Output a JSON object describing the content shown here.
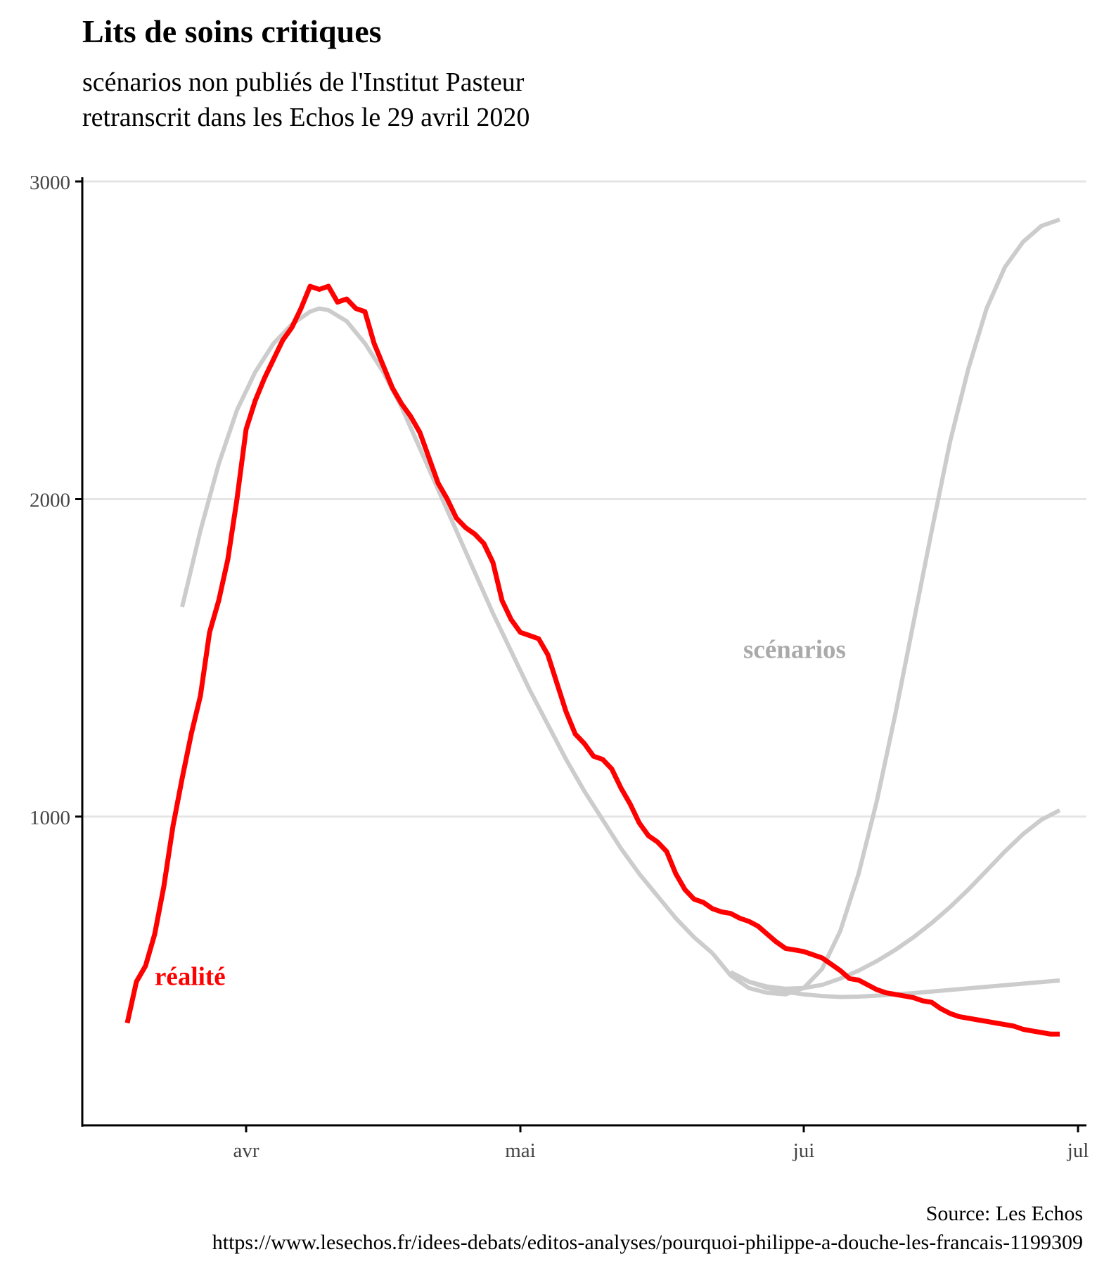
{
  "header": {
    "title": "Lits de soins critiques",
    "subtitle_lines": [
      "scénarios non publiés de l'Institut Pasteur",
      "retranscrit dans les Echos le 29 avril 2020"
    ]
  },
  "caption": {
    "source": "Source: Les Echos",
    "url": "https://www.lesechos.fr/idees-debats/editos-analyses/pourquoi-philippe-a-douche-les-francais-1199309"
  },
  "colors": {
    "reality": "#ff0000",
    "scenario": "#cccccc",
    "scenario_label": "#aaaaaa",
    "grid": "#e5e5e5",
    "axis": "#000000",
    "tick_text": "#444444"
  },
  "chart_data": {
    "type": "line",
    "title": "Lits de soins critiques",
    "xlabel": "",
    "ylabel": "",
    "x_unit": "date (2020)",
    "xlim": [
      "2020-03-14",
      "2020-07-01"
    ],
    "ylim": [
      0,
      3000
    ],
    "x_ticks": [
      {
        "date": "2020-04-01",
        "label": "avr"
      },
      {
        "date": "2020-05-01",
        "label": "mai"
      },
      {
        "date": "2020-06-01",
        "label": "jui"
      },
      {
        "date": "2020-07-01",
        "label": "jul"
      }
    ],
    "y_ticks": [
      1000,
      2000,
      3000
    ],
    "grid": "horizontal",
    "legend": "none",
    "annotations": [
      {
        "text": "réalité",
        "series": "réalité",
        "date": "2020-03-22",
        "y": 470
      },
      {
        "text": "scénarios",
        "series": "scénarios",
        "date": "2020-05-31",
        "y": 1500
      }
    ],
    "series": [
      {
        "name": "réalité",
        "color": "#ff0000",
        "points": [
          [
            "2020-03-19",
            350
          ],
          [
            "2020-03-20",
            480
          ],
          [
            "2020-03-21",
            530
          ],
          [
            "2020-03-22",
            630
          ],
          [
            "2020-03-23",
            780
          ],
          [
            "2020-03-24",
            970
          ],
          [
            "2020-03-25",
            1120
          ],
          [
            "2020-03-26",
            1260
          ],
          [
            "2020-03-27",
            1380
          ],
          [
            "2020-03-28",
            1580
          ],
          [
            "2020-03-29",
            1680
          ],
          [
            "2020-03-30",
            1810
          ],
          [
            "2020-03-31",
            2000
          ],
          [
            "2020-04-01",
            2220
          ],
          [
            "2020-04-02",
            2310
          ],
          [
            "2020-04-03",
            2380
          ],
          [
            "2020-04-04",
            2440
          ],
          [
            "2020-04-05",
            2500
          ],
          [
            "2020-04-06",
            2540
          ],
          [
            "2020-04-07",
            2600
          ],
          [
            "2020-04-08",
            2670
          ],
          [
            "2020-04-09",
            2660
          ],
          [
            "2020-04-10",
            2670
          ],
          [
            "2020-04-11",
            2620
          ],
          [
            "2020-04-12",
            2630
          ],
          [
            "2020-04-13",
            2600
          ],
          [
            "2020-04-14",
            2590
          ],
          [
            "2020-04-15",
            2490
          ],
          [
            "2020-04-16",
            2420
          ],
          [
            "2020-04-17",
            2350
          ],
          [
            "2020-04-18",
            2300
          ],
          [
            "2020-04-19",
            2260
          ],
          [
            "2020-04-20",
            2210
          ],
          [
            "2020-04-21",
            2130
          ],
          [
            "2020-04-22",
            2050
          ],
          [
            "2020-04-23",
            2000
          ],
          [
            "2020-04-24",
            1940
          ],
          [
            "2020-04-25",
            1910
          ],
          [
            "2020-04-26",
            1890
          ],
          [
            "2020-04-27",
            1860
          ],
          [
            "2020-04-28",
            1800
          ],
          [
            "2020-04-29",
            1680
          ],
          [
            "2020-04-30",
            1620
          ],
          [
            "2020-05-01",
            1580
          ],
          [
            "2020-05-02",
            1570
          ],
          [
            "2020-05-03",
            1560
          ],
          [
            "2020-05-04",
            1510
          ],
          [
            "2020-05-05",
            1420
          ],
          [
            "2020-05-06",
            1330
          ],
          [
            "2020-05-07",
            1260
          ],
          [
            "2020-05-08",
            1230
          ],
          [
            "2020-05-09",
            1190
          ],
          [
            "2020-05-10",
            1180
          ],
          [
            "2020-05-11",
            1150
          ],
          [
            "2020-05-12",
            1090
          ],
          [
            "2020-05-13",
            1040
          ],
          [
            "2020-05-14",
            980
          ],
          [
            "2020-05-15",
            940
          ],
          [
            "2020-05-16",
            920
          ],
          [
            "2020-05-17",
            890
          ],
          [
            "2020-05-18",
            820
          ],
          [
            "2020-05-19",
            770
          ],
          [
            "2020-05-20",
            740
          ],
          [
            "2020-05-21",
            730
          ],
          [
            "2020-05-22",
            710
          ],
          [
            "2020-05-23",
            700
          ],
          [
            "2020-05-24",
            695
          ],
          [
            "2020-05-25",
            680
          ],
          [
            "2020-05-26",
            670
          ],
          [
            "2020-05-27",
            655
          ],
          [
            "2020-05-28",
            630
          ],
          [
            "2020-05-29",
            605
          ],
          [
            "2020-05-30",
            585
          ],
          [
            "2020-05-31",
            580
          ],
          [
            "2020-06-01",
            575
          ],
          [
            "2020-06-02",
            565
          ],
          [
            "2020-06-03",
            555
          ],
          [
            "2020-06-04",
            535
          ],
          [
            "2020-06-05",
            515
          ],
          [
            "2020-06-06",
            490
          ],
          [
            "2020-06-07",
            485
          ],
          [
            "2020-06-08",
            470
          ],
          [
            "2020-06-09",
            455
          ],
          [
            "2020-06-10",
            445
          ],
          [
            "2020-06-11",
            440
          ],
          [
            "2020-06-12",
            435
          ],
          [
            "2020-06-13",
            430
          ],
          [
            "2020-06-14",
            420
          ],
          [
            "2020-06-15",
            415
          ],
          [
            "2020-06-16",
            395
          ],
          [
            "2020-06-17",
            380
          ],
          [
            "2020-06-18",
            370
          ],
          [
            "2020-06-19",
            365
          ],
          [
            "2020-06-20",
            360
          ],
          [
            "2020-06-21",
            355
          ],
          [
            "2020-06-22",
            350
          ],
          [
            "2020-06-23",
            345
          ],
          [
            "2020-06-24",
            340
          ],
          [
            "2020-06-25",
            330
          ],
          [
            "2020-06-26",
            325
          ],
          [
            "2020-06-27",
            320
          ],
          [
            "2020-06-28",
            315
          ],
          [
            "2020-06-29",
            315
          ]
        ]
      },
      {
        "name": "scénario (courbe principale)",
        "color": "#cccccc",
        "points": [
          [
            "2020-03-25",
            1660
          ],
          [
            "2020-03-27",
            1900
          ],
          [
            "2020-03-29",
            2110
          ],
          [
            "2020-03-31",
            2280
          ],
          [
            "2020-04-02",
            2400
          ],
          [
            "2020-04-04",
            2490
          ],
          [
            "2020-04-06",
            2550
          ],
          [
            "2020-04-08",
            2590
          ],
          [
            "2020-04-09",
            2600
          ],
          [
            "2020-04-10",
            2595
          ],
          [
            "2020-04-12",
            2560
          ],
          [
            "2020-04-14",
            2490
          ],
          [
            "2020-04-16",
            2400
          ],
          [
            "2020-04-18",
            2290
          ],
          [
            "2020-04-20",
            2160
          ],
          [
            "2020-04-22",
            2030
          ],
          [
            "2020-04-24",
            1900
          ],
          [
            "2020-04-26",
            1770
          ],
          [
            "2020-04-28",
            1640
          ],
          [
            "2020-04-30",
            1520
          ],
          [
            "2020-05-02",
            1400
          ],
          [
            "2020-05-04",
            1290
          ],
          [
            "2020-05-06",
            1180
          ],
          [
            "2020-05-08",
            1080
          ],
          [
            "2020-05-10",
            990
          ],
          [
            "2020-05-12",
            900
          ],
          [
            "2020-05-14",
            820
          ],
          [
            "2020-05-16",
            750
          ],
          [
            "2020-05-18",
            680
          ],
          [
            "2020-05-20",
            620
          ],
          [
            "2020-05-22",
            570
          ]
        ]
      },
      {
        "name": "scénario 1",
        "color": "#cccccc",
        "points": [
          [
            "2020-05-22",
            570
          ],
          [
            "2020-05-24",
            500
          ],
          [
            "2020-05-26",
            460
          ],
          [
            "2020-05-28",
            445
          ],
          [
            "2020-05-30",
            440
          ],
          [
            "2020-06-01",
            460
          ],
          [
            "2020-06-03",
            520
          ],
          [
            "2020-06-05",
            640
          ],
          [
            "2020-06-07",
            820
          ],
          [
            "2020-06-09",
            1050
          ],
          [
            "2020-06-11",
            1320
          ],
          [
            "2020-06-13",
            1610
          ],
          [
            "2020-06-15",
            1900
          ],
          [
            "2020-06-17",
            2180
          ],
          [
            "2020-06-19",
            2410
          ],
          [
            "2020-06-21",
            2600
          ],
          [
            "2020-06-23",
            2730
          ],
          [
            "2020-06-25",
            2810
          ],
          [
            "2020-06-27",
            2860
          ],
          [
            "2020-06-29",
            2880
          ]
        ]
      },
      {
        "name": "scénario 2",
        "color": "#cccccc",
        "points": [
          [
            "2020-05-24",
            510
          ],
          [
            "2020-05-26",
            480
          ],
          [
            "2020-05-28",
            465
          ],
          [
            "2020-05-30",
            458
          ],
          [
            "2020-06-01",
            460
          ],
          [
            "2020-06-03",
            470
          ],
          [
            "2020-06-05",
            490
          ],
          [
            "2020-06-07",
            515
          ],
          [
            "2020-06-09",
            545
          ],
          [
            "2020-06-11",
            580
          ],
          [
            "2020-06-13",
            620
          ],
          [
            "2020-06-15",
            665
          ],
          [
            "2020-06-17",
            715
          ],
          [
            "2020-06-19",
            770
          ],
          [
            "2020-06-21",
            830
          ],
          [
            "2020-06-23",
            890
          ],
          [
            "2020-06-25",
            945
          ],
          [
            "2020-06-27",
            990
          ],
          [
            "2020-06-29",
            1020
          ]
        ]
      },
      {
        "name": "scénario 3",
        "color": "#cccccc",
        "points": [
          [
            "2020-05-24",
            510
          ],
          [
            "2020-05-26",
            480
          ],
          [
            "2020-05-28",
            460
          ],
          [
            "2020-05-30",
            448
          ],
          [
            "2020-06-01",
            440
          ],
          [
            "2020-06-03",
            435
          ],
          [
            "2020-06-05",
            432
          ],
          [
            "2020-06-07",
            433
          ],
          [
            "2020-06-09",
            436
          ],
          [
            "2020-06-11",
            440
          ],
          [
            "2020-06-13",
            444
          ],
          [
            "2020-06-15",
            449
          ],
          [
            "2020-06-17",
            454
          ],
          [
            "2020-06-19",
            459
          ],
          [
            "2020-06-21",
            464
          ],
          [
            "2020-06-23",
            469
          ],
          [
            "2020-06-25",
            474
          ],
          [
            "2020-06-27",
            479
          ],
          [
            "2020-06-29",
            484
          ]
        ]
      }
    ]
  }
}
